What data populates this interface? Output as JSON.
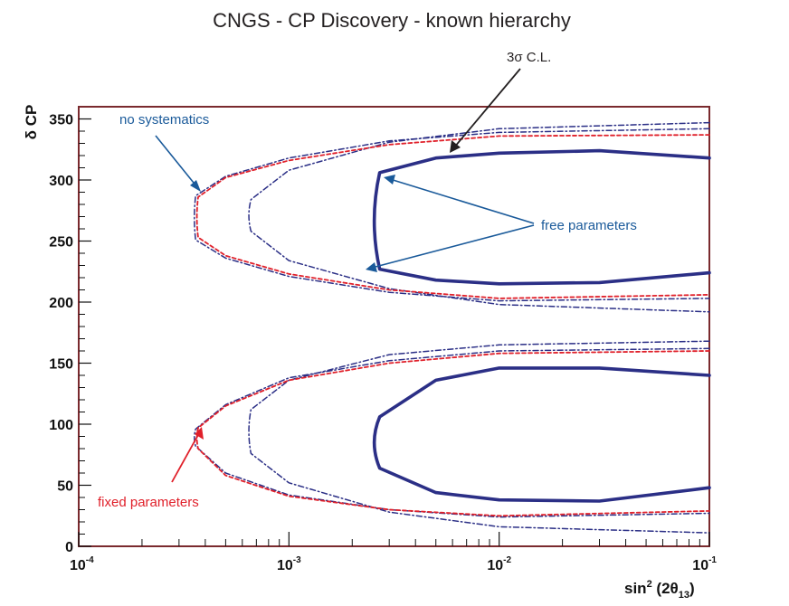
{
  "chart_data": {
    "type": "contour",
    "title": "CNGS - CP Discovery - known hierarchy",
    "xlabel": {
      "base": "sin",
      "sup": "2",
      "rest": " (2θ",
      "sub": "13",
      "close": ")"
    },
    "ylabel": "δ CP",
    "xscale": "log",
    "xlim": [
      0.0001,
      0.1
    ],
    "ylim": [
      0,
      360
    ],
    "x_ticks": [
      {
        "base": "10",
        "exp": "-4",
        "value": 0.0001
      },
      {
        "base": "10",
        "exp": "-3",
        "value": 0.001
      },
      {
        "base": "10",
        "exp": "-2",
        "value": 0.01
      },
      {
        "base": "10",
        "exp": "-1",
        "value": 0.1
      }
    ],
    "y_ticks": [
      "0",
      "50",
      "100",
      "150",
      "200",
      "250",
      "300",
      "350"
    ],
    "annotations": [
      {
        "text": "no systematics",
        "color": "#1a5a9a"
      },
      {
        "text": "3σ C.L.",
        "color": "#231f20"
      },
      {
        "text": "free parameters",
        "color": "#1a5a9a"
      },
      {
        "text": "fixed parameters",
        "color": "#e0202a"
      }
    ],
    "series": [
      {
        "name": "free parameters",
        "style": "solid thick",
        "color": "#2b2f86",
        "tip_x": 0.0024,
        "upper": [
          [
            0.1,
            318
          ],
          [
            0.03,
            324
          ],
          [
            0.01,
            322
          ],
          [
            0.005,
            318
          ],
          [
            0.0027,
            306
          ]
        ],
        "lower": [
          [
            0.0027,
            227
          ],
          [
            0.005,
            218
          ],
          [
            0.01,
            215
          ],
          [
            0.03,
            216
          ],
          [
            0.1,
            224
          ]
        ]
      },
      {
        "name": "free parameters",
        "style": "solid thick",
        "color": "#2b2f86",
        "tip_x": 0.0024,
        "upper": [
          [
            0.1,
            140
          ],
          [
            0.03,
            146
          ],
          [
            0.01,
            146
          ],
          [
            0.005,
            136
          ],
          [
            0.0027,
            106
          ]
        ],
        "lower": [
          [
            0.0027,
            64
          ],
          [
            0.005,
            44
          ],
          [
            0.01,
            38
          ],
          [
            0.03,
            37
          ],
          [
            0.1,
            48
          ]
        ]
      },
      {
        "name": "fixed parameters",
        "style": "dash-dot",
        "color": "#2b2f86",
        "tip_x": 0.00063,
        "upper": [
          [
            0.1,
            347
          ],
          [
            0.01,
            342
          ],
          [
            0.003,
            331
          ],
          [
            0.001,
            308
          ],
          [
            0.00066,
            284
          ]
        ],
        "lower": [
          [
            0.00066,
            258
          ],
          [
            0.001,
            234
          ],
          [
            0.003,
            211
          ],
          [
            0.01,
            198
          ],
          [
            0.1,
            192
          ]
        ]
      },
      {
        "name": "fixed parameters",
        "style": "dash-dot",
        "color": "#2b2f86",
        "tip_x": 0.00063,
        "upper": [
          [
            0.1,
            168
          ],
          [
            0.01,
            165
          ],
          [
            0.003,
            157
          ],
          [
            0.001,
            136
          ],
          [
            0.00066,
            112
          ]
        ],
        "lower": [
          [
            0.00066,
            76
          ],
          [
            0.001,
            52
          ],
          [
            0.003,
            28
          ],
          [
            0.01,
            16
          ],
          [
            0.1,
            11
          ]
        ]
      },
      {
        "name": "no systematics",
        "style": "dash-dot",
        "color": "#2b2f86",
        "tip_x": 0.00035,
        "upper": [
          [
            0.1,
            342
          ],
          [
            0.01,
            339
          ],
          [
            0.003,
            332
          ],
          [
            0.001,
            318
          ],
          [
            0.0005,
            303
          ],
          [
            0.00036,
            287
          ]
        ],
        "lower": [
          [
            0.00036,
            251
          ],
          [
            0.0005,
            236
          ],
          [
            0.001,
            221
          ],
          [
            0.003,
            208
          ],
          [
            0.01,
            201
          ],
          [
            0.1,
            203
          ]
        ]
      },
      {
        "name": "no systematics",
        "style": "dash-dot",
        "color": "#2b2f86",
        "tip_x": 0.00035,
        "upper": [
          [
            0.1,
            162
          ],
          [
            0.01,
            160
          ],
          [
            0.003,
            152
          ],
          [
            0.001,
            138
          ],
          [
            0.0005,
            116
          ],
          [
            0.00036,
            96
          ]
        ],
        "lower": [
          [
            0.00036,
            82
          ],
          [
            0.0005,
            60
          ],
          [
            0.001,
            42
          ],
          [
            0.003,
            30
          ],
          [
            0.01,
            24
          ],
          [
            0.1,
            27
          ]
        ]
      },
      {
        "name": "fixed parameters",
        "style": "dashed",
        "color": "#e0202a",
        "tip_x": 0.00036,
        "upper": [
          [
            0.1,
            337
          ],
          [
            0.01,
            336
          ],
          [
            0.003,
            329
          ],
          [
            0.001,
            316
          ],
          [
            0.0005,
            302
          ],
          [
            0.00037,
            286
          ]
        ],
        "lower": [
          [
            0.00037,
            253
          ],
          [
            0.0005,
            238
          ],
          [
            0.001,
            223
          ],
          [
            0.003,
            210
          ],
          [
            0.01,
            203
          ],
          [
            0.1,
            206
          ]
        ]
      },
      {
        "name": "fixed parameters",
        "style": "dashed",
        "color": "#e0202a",
        "tip_x": 0.00036,
        "upper": [
          [
            0.1,
            160
          ],
          [
            0.01,
            158
          ],
          [
            0.003,
            150
          ],
          [
            0.001,
            136
          ],
          [
            0.0005,
            115
          ],
          [
            0.00037,
            97
          ]
        ],
        "lower": [
          [
            0.00037,
            80
          ],
          [
            0.0005,
            58
          ],
          [
            0.001,
            41
          ],
          [
            0.003,
            30
          ],
          [
            0.01,
            25
          ],
          [
            0.1,
            29
          ]
        ]
      }
    ]
  }
}
